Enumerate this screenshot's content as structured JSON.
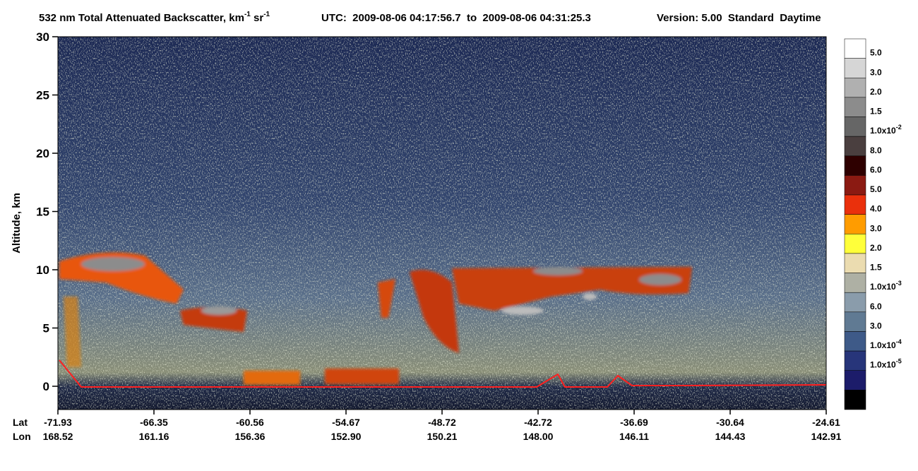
{
  "chart_data": {
    "type": "heatmap",
    "title": [
      "532 nm Total Attenuated Backscatter, km",
      "-1",
      " sr",
      "-1"
    ],
    "subtitle": "UTC:  2009-08-06 04:17:56.7  to  2009-08-06 04:31:25.3",
    "version": "Version: 5.00  Standard  Daytime",
    "ylabel": "Altitude, km",
    "ylim": [
      -2,
      30
    ],
    "yticks": [
      0,
      5,
      10,
      15,
      20,
      25,
      30
    ],
    "x_row_labels": [
      "Lat",
      "Lon"
    ],
    "lat": [
      "-71.93",
      "-66.35",
      "-60.56",
      "-54.67",
      "-48.72",
      "-42.72",
      "-36.69",
      "-30.64",
      "-24.61"
    ],
    "lon": [
      "168.52",
      "161.16",
      "156.36",
      "152.90",
      "150.21",
      "148.00",
      "146.11",
      "144.43",
      "142.91"
    ],
    "colorbar": {
      "colors": [
        "#ffffff",
        "#d6d6d6",
        "#b0b0b0",
        "#8c8c8c",
        "#666666",
        "#4a3f3f",
        "#2e0000",
        "#8b1a12",
        "#ea300c",
        "#ff9c00",
        "#ffff3a",
        "#ebdcb0",
        "#aeb0a4",
        "#8a9cab",
        "#607a93",
        "#3e5a88",
        "#27357a",
        "#1c1c6a",
        "#000000"
      ],
      "labels": [
        {
          "text": "5.0"
        },
        {
          "text": "3.0"
        },
        {
          "text": "2.0"
        },
        {
          "text": "1.5"
        },
        {
          "text": "1.0x10",
          "sup": "-2"
        },
        {
          "text": "8.0"
        },
        {
          "text": "6.0"
        },
        {
          "text": "5.0"
        },
        {
          "text": "4.0"
        },
        {
          "text": "3.0"
        },
        {
          "text": "2.0"
        },
        {
          "text": "1.5"
        },
        {
          "text": "1.0x10",
          "sup": "-3"
        },
        {
          "text": "6.0"
        },
        {
          "text": "3.0"
        },
        {
          "text": "1.0x10",
          "sup": "-4"
        },
        {
          "text": "1.0x10",
          "sup": "-5"
        }
      ]
    }
  }
}
